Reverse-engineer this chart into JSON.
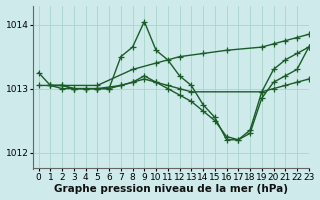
{
  "title": "Graphe pression niveau de la mer (hPa)",
  "bg_color": "#ceeaea",
  "grid_color": "#a8d5cc",
  "line_color": "#1a5c28",
  "xlim": [
    -0.5,
    23
  ],
  "ylim": [
    1011.75,
    1014.3
  ],
  "yticks": [
    1012,
    1013,
    1014
  ],
  "xticks": [
    0,
    1,
    2,
    3,
    4,
    5,
    6,
    7,
    8,
    9,
    10,
    11,
    12,
    13,
    14,
    15,
    16,
    17,
    18,
    19,
    20,
    21,
    22,
    23
  ],
  "series": [
    {
      "x": [
        0,
        1,
        2,
        3,
        4,
        5,
        6,
        7,
        8,
        9,
        10,
        11,
        12,
        13,
        14,
        15,
        16,
        17,
        18,
        19,
        20,
        21,
        22,
        23
      ],
      "y": [
        1013.25,
        1013.05,
        1013.05,
        1013.0,
        1013.0,
        1013.0,
        1013.0,
        1013.5,
        1013.65,
        1014.05,
        1013.6,
        1013.45,
        1013.2,
        1013.05,
        1012.75,
        1012.55,
        1012.2,
        1012.2,
        1012.35,
        1012.95,
        1013.3,
        1013.45,
        1013.55,
        1013.65
      ]
    },
    {
      "x": [
        0,
        5,
        8,
        10,
        12,
        14,
        16,
        19,
        20,
        21,
        22,
        23
      ],
      "y": [
        1013.05,
        1013.05,
        1013.3,
        1013.4,
        1013.5,
        1013.55,
        1013.6,
        1013.65,
        1013.7,
        1013.75,
        1013.8,
        1013.85
      ]
    },
    {
      "x": [
        1,
        2,
        3,
        4,
        5,
        6,
        7,
        8,
        9,
        10,
        11,
        12,
        13,
        19,
        20,
        21,
        22,
        23
      ],
      "y": [
        1013.05,
        1013.05,
        1013.0,
        1013.0,
        1013.0,
        1013.0,
        1013.05,
        1013.1,
        1013.15,
        1013.1,
        1013.05,
        1013.0,
        1012.95,
        1012.95,
        1013.0,
        1013.05,
        1013.1,
        1013.15
      ]
    },
    {
      "x": [
        1,
        2,
        3,
        4,
        5,
        7,
        8,
        9,
        10,
        11,
        12,
        13,
        14,
        15,
        16,
        17,
        18,
        19,
        20,
        21,
        22,
        23
      ],
      "y": [
        1013.05,
        1013.0,
        1013.0,
        1013.0,
        1013.0,
        1013.05,
        1013.1,
        1013.2,
        1013.1,
        1013.0,
        1012.9,
        1012.8,
        1012.65,
        1012.5,
        1012.25,
        1012.2,
        1012.3,
        1012.85,
        1013.1,
        1013.2,
        1013.3,
        1013.65
      ]
    }
  ],
  "marker": "+",
  "markersize": 4,
  "linewidth": 1.0,
  "tick_fontsize": 6.5,
  "title_fontsize": 7.5
}
